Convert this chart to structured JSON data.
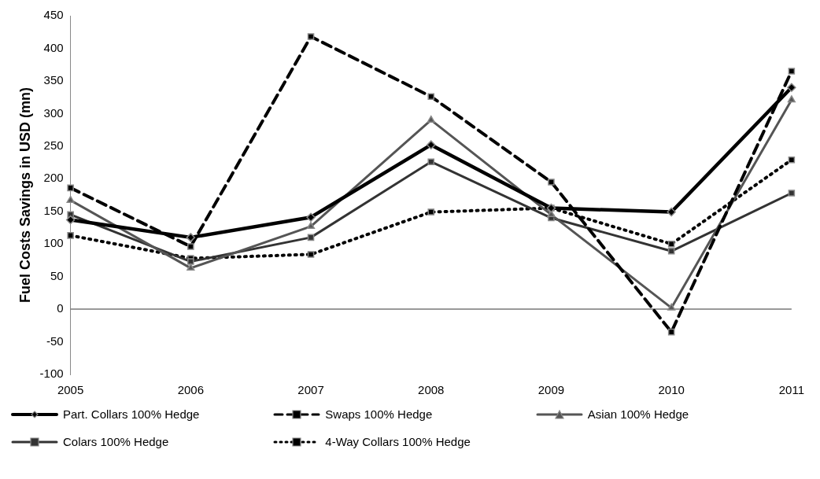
{
  "chart_data": {
    "type": "line",
    "ylabel": "Fuel Costs Savings in USD (mn)",
    "categories": [
      "2005",
      "2006",
      "2007",
      "2008",
      "2009",
      "2010",
      "2011"
    ],
    "series": [
      {
        "name": "Part. Collars 100% Hedge",
        "color": "#000000",
        "line_style": "solid",
        "marker": "diamond",
        "values": [
          137,
          110,
          141,
          252,
          155,
          149,
          340
        ]
      },
      {
        "name": "Swaps 100% Hedge",
        "color": "#000000",
        "line_style": "dashed",
        "marker": "square",
        "values": [
          186,
          96,
          418,
          326,
          195,
          -35,
          365
        ]
      },
      {
        "name": "Asian 100% Hedge",
        "color": "#555555",
        "line_style": "solid",
        "marker": "triangle",
        "values": [
          167,
          63,
          127,
          290,
          145,
          2,
          321
        ]
      },
      {
        "name": "Colars 100% Hedge",
        "color": "#333333",
        "line_style": "solid",
        "marker": "square",
        "values": [
          145,
          73,
          110,
          226,
          140,
          89,
          178
        ]
      },
      {
        "name": "4-Way Collars 100% Hedge",
        "color": "#000000",
        "line_style": "dotted",
        "marker": "square",
        "values": [
          113,
          78,
          84,
          149,
          155,
          100,
          229
        ]
      }
    ],
    "ylim": [
      -100,
      450
    ],
    "yticks": [
      -100,
      -50,
      0,
      50,
      100,
      150,
      200,
      250,
      300,
      350,
      400,
      450
    ],
    "ref_lines": [
      {
        "axis": "y",
        "value": 0
      }
    ],
    "grid": false,
    "legend": "bottom"
  }
}
